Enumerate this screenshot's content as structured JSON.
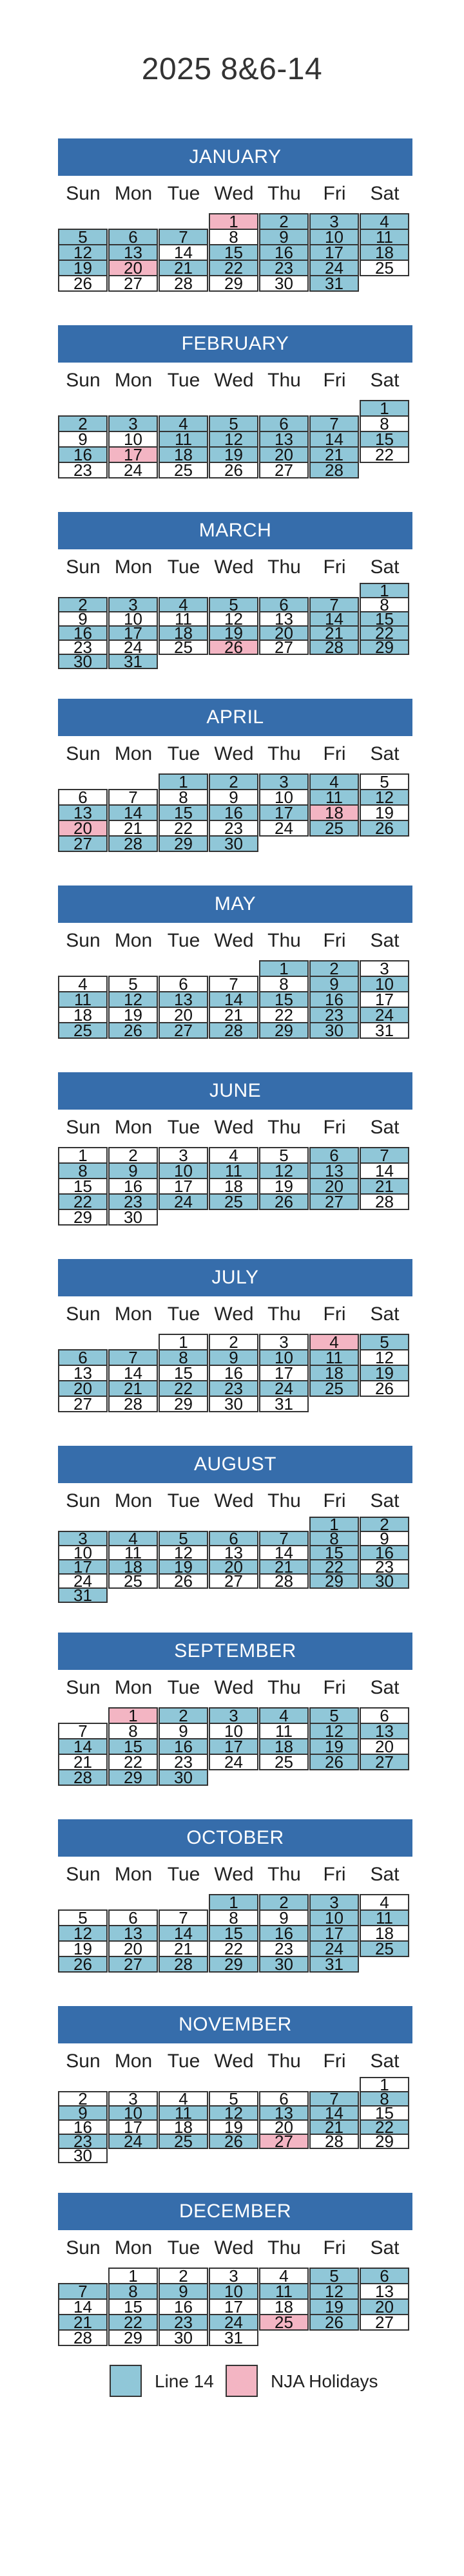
{
  "title": "2025 8&6-14",
  "weekdays": [
    "Sun",
    "Mon",
    "Tue",
    "Wed",
    "Thu",
    "Fri",
    "Sat"
  ],
  "legend": [
    {
      "label": "Line 14",
      "color": "#90c7d8"
    },
    {
      "label": "NJA Holidays",
      "color": "#f3b5c3"
    }
  ],
  "months": [
    {
      "name": "JANUARY",
      "first_weekday": 3,
      "days": 31,
      "line_days": [
        2,
        3,
        4,
        5,
        6,
        7,
        9,
        10,
        11,
        12,
        13,
        15,
        16,
        17,
        18,
        19,
        21,
        22,
        23,
        24,
        31
      ],
      "holidays": [
        1,
        20
      ]
    },
    {
      "name": "FEBRUARY",
      "first_weekday": 6,
      "days": 28,
      "line_days": [
        1,
        2,
        3,
        4,
        5,
        6,
        7,
        11,
        12,
        13,
        14,
        15,
        16,
        18,
        19,
        20,
        21,
        28
      ],
      "holidays": [
        17
      ]
    },
    {
      "name": "MARCH",
      "first_weekday": 6,
      "days": 31,
      "line_days": [
        1,
        2,
        3,
        4,
        5,
        6,
        7,
        14,
        15,
        16,
        17,
        18,
        19,
        20,
        21,
        22,
        28,
        29,
        30,
        31
      ],
      "holidays": [
        26
      ]
    },
    {
      "name": "APRIL",
      "first_weekday": 2,
      "days": 30,
      "line_days": [
        1,
        2,
        3,
        4,
        11,
        12,
        13,
        14,
        15,
        16,
        17,
        25,
        26,
        27,
        28,
        29,
        30
      ],
      "holidays": [
        18,
        20
      ]
    },
    {
      "name": "MAY",
      "first_weekday": 4,
      "days": 31,
      "line_days": [
        1,
        2,
        9,
        10,
        11,
        12,
        13,
        14,
        15,
        16,
        23,
        24,
        25,
        26,
        27,
        28,
        29,
        30
      ],
      "holidays": []
    },
    {
      "name": "JUNE",
      "first_weekday": 0,
      "days": 30,
      "line_days": [
        6,
        7,
        8,
        9,
        10,
        11,
        12,
        13,
        20,
        21,
        22,
        23,
        24,
        25,
        26,
        27
      ],
      "holidays": []
    },
    {
      "name": "JULY",
      "first_weekday": 2,
      "days": 31,
      "line_days": [
        5,
        6,
        7,
        8,
        9,
        10,
        11,
        18,
        19,
        20,
        21,
        22,
        23,
        24,
        25
      ],
      "holidays": [
        4
      ]
    },
    {
      "name": "AUGUST",
      "first_weekday": 5,
      "days": 31,
      "line_days": [
        1,
        2,
        3,
        4,
        5,
        6,
        7,
        8,
        15,
        16,
        17,
        18,
        19,
        20,
        21,
        22,
        29,
        30,
        31
      ],
      "holidays": []
    },
    {
      "name": "SEPTEMBER",
      "first_weekday": 1,
      "days": 30,
      "line_days": [
        2,
        3,
        4,
        5,
        12,
        13,
        14,
        15,
        16,
        17,
        18,
        19,
        26,
        27,
        28,
        29,
        30
      ],
      "holidays": [
        1
      ]
    },
    {
      "name": "OCTOBER",
      "first_weekday": 3,
      "days": 31,
      "line_days": [
        1,
        2,
        3,
        10,
        11,
        12,
        13,
        14,
        15,
        16,
        17,
        24,
        25,
        26,
        27,
        28,
        29,
        30,
        31
      ],
      "holidays": []
    },
    {
      "name": "NOVEMBER",
      "first_weekday": 6,
      "days": 30,
      "line_days": [
        7,
        8,
        9,
        10,
        11,
        12,
        13,
        14,
        21,
        22,
        23,
        24,
        25,
        26
      ],
      "holidays": [
        27
      ]
    },
    {
      "name": "DECEMBER",
      "first_weekday": 1,
      "days": 31,
      "line_days": [
        5,
        6,
        7,
        8,
        9,
        10,
        11,
        12,
        19,
        20,
        21,
        22,
        23,
        24,
        26
      ],
      "holidays": [
        25
      ]
    }
  ]
}
